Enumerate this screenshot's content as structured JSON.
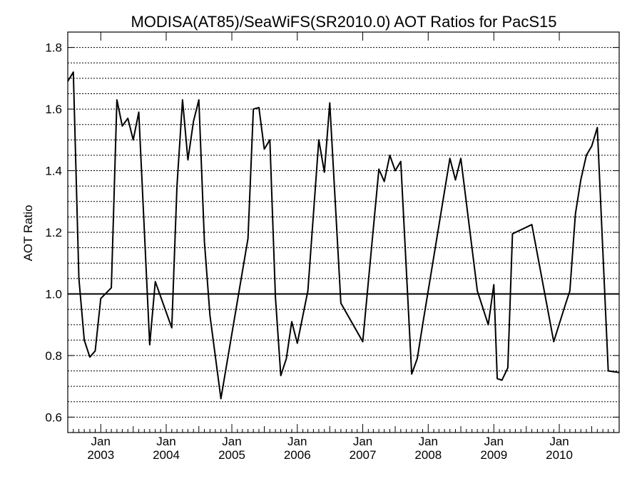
{
  "chart_data": {
    "type": "line",
    "title": "MODISA(AT85)/SeaWiFS(SR2010.0)  AOT Ratios for PacS15",
    "xlabel": "",
    "ylabel": "AOT Ratio",
    "xlim": [
      "2002-07-01",
      "2010-12-01"
    ],
    "ylim": [
      0.55,
      1.85
    ],
    "yticks": [
      0.6,
      0.8,
      1.0,
      1.2,
      1.4,
      1.6,
      1.8
    ],
    "ytick_labels": [
      "0.6",
      "0.8",
      "1.0",
      "1.2",
      "1.4",
      "1.6",
      "1.8"
    ],
    "y_gridlines": [
      0.6,
      0.65,
      0.7,
      0.75,
      0.8,
      0.85,
      0.9,
      0.95,
      1.05,
      1.1,
      1.15,
      1.2,
      1.25,
      1.3,
      1.35,
      1.4,
      1.45,
      1.5,
      1.55,
      1.6,
      1.65,
      1.7,
      1.75,
      1.8
    ],
    "reference_line": 1.0,
    "x_major_ticks": [
      {
        "date": "2003-01-01",
        "month": "Jan",
        "year": "2003"
      },
      {
        "date": "2004-01-01",
        "month": "Jan",
        "year": "2004"
      },
      {
        "date": "2005-01-01",
        "month": "Jan",
        "year": "2005"
      },
      {
        "date": "2006-01-01",
        "month": "Jan",
        "year": "2006"
      },
      {
        "date": "2007-01-01",
        "month": "Jan",
        "year": "2007"
      },
      {
        "date": "2008-01-01",
        "month": "Jan",
        "year": "2008"
      },
      {
        "date": "2009-01-01",
        "month": "Jan",
        "year": "2009"
      },
      {
        "date": "2010-01-01",
        "month": "Jan",
        "year": "2010"
      }
    ],
    "grid": "horizontal dotted",
    "series": [
      {
        "points": [
          [
            "2002-07-01",
            1.69
          ],
          [
            "2002-08-01",
            1.72
          ],
          [
            "2002-09-01",
            1.05
          ],
          [
            "2002-10-01",
            0.85
          ],
          [
            "2002-11-01",
            0.795
          ],
          [
            "2002-12-01",
            0.815
          ],
          [
            "2003-01-01",
            0.985
          ],
          [
            "2003-03-01",
            1.02
          ],
          [
            "2003-04-01",
            1.63
          ],
          [
            "2003-05-01",
            1.545
          ],
          [
            "2003-06-01",
            1.57
          ],
          [
            "2003-07-01",
            1.5
          ],
          [
            "2003-08-01",
            1.59
          ],
          [
            "2003-10-01",
            0.835
          ],
          [
            "2003-11-01",
            1.04
          ],
          [
            "2004-02-01",
            0.89
          ],
          [
            "2004-03-01",
            1.35
          ],
          [
            "2004-04-01",
            1.63
          ],
          [
            "2004-05-01",
            1.435
          ],
          [
            "2004-06-01",
            1.56
          ],
          [
            "2004-07-01",
            1.63
          ],
          [
            "2004-08-01",
            1.17
          ],
          [
            "2004-09-01",
            0.93
          ],
          [
            "2004-11-01",
            0.66
          ],
          [
            "2005-04-01",
            1.18
          ],
          [
            "2005-05-01",
            1.6
          ],
          [
            "2005-06-01",
            1.605
          ],
          [
            "2005-07-01",
            1.47
          ],
          [
            "2005-08-01",
            1.5
          ],
          [
            "2005-09-01",
            0.99
          ],
          [
            "2005-10-01",
            0.735
          ],
          [
            "2005-11-01",
            0.79
          ],
          [
            "2005-12-01",
            0.91
          ],
          [
            "2006-01-01",
            0.84
          ],
          [
            "2006-03-01",
            1.01
          ],
          [
            "2006-05-01",
            1.5
          ],
          [
            "2006-06-01",
            1.395
          ],
          [
            "2006-07-01",
            1.62
          ],
          [
            "2006-09-01",
            0.97
          ],
          [
            "2007-01-01",
            0.845
          ],
          [
            "2007-04-01",
            1.405
          ],
          [
            "2007-05-01",
            1.365
          ],
          [
            "2007-06-01",
            1.45
          ],
          [
            "2007-07-01",
            1.4
          ],
          [
            "2007-08-01",
            1.43
          ],
          [
            "2007-10-01",
            0.74
          ],
          [
            "2007-11-01",
            0.79
          ],
          [
            "2007-12-01",
            0.9
          ],
          [
            "2008-05-01",
            1.44
          ],
          [
            "2008-06-01",
            1.37
          ],
          [
            "2008-07-01",
            1.44
          ],
          [
            "2008-10-01",
            1.01
          ],
          [
            "2008-12-01",
            0.9
          ],
          [
            "2009-01-01",
            1.03
          ],
          [
            "2009-01-20",
            0.725
          ],
          [
            "2009-02-15",
            0.72
          ],
          [
            "2009-03-20",
            0.76
          ],
          [
            "2009-04-15",
            1.195
          ],
          [
            "2009-08-01",
            1.225
          ],
          [
            "2009-12-01",
            0.845
          ],
          [
            "2010-02-01",
            0.96
          ],
          [
            "2010-03-01",
            1.01
          ],
          [
            "2010-04-01",
            1.26
          ],
          [
            "2010-05-01",
            1.37
          ],
          [
            "2010-06-01",
            1.45
          ],
          [
            "2010-07-01",
            1.48
          ],
          [
            "2010-08-01",
            1.54
          ],
          [
            "2010-10-01",
            0.75
          ],
          [
            "2010-12-01",
            0.745
          ]
        ]
      }
    ]
  }
}
